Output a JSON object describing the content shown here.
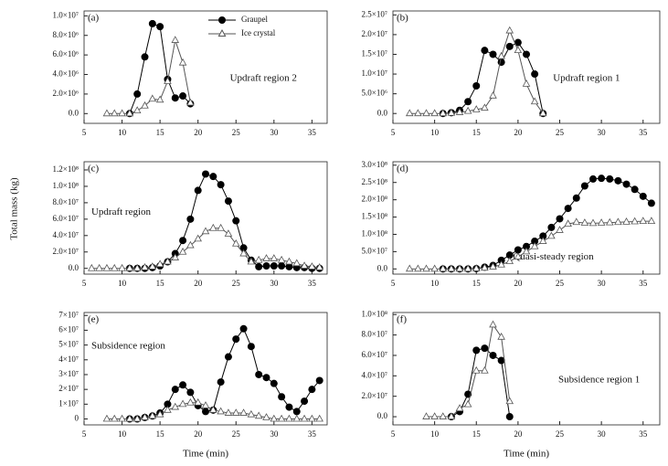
{
  "chart_data": [
    {
      "type": "line",
      "label": "(a)",
      "annotation": "Updraft region 2",
      "legend": "top-right",
      "x": [
        8,
        9,
        10,
        11,
        12,
        13,
        14,
        15,
        16,
        17,
        18,
        19
      ],
      "series": [
        {
          "name": "Graupel",
          "color": "#000000",
          "marker": "circle",
          "values": [
            null,
            null,
            null,
            0,
            2000000.0,
            5800000.0,
            9200000.0,
            8900000.0,
            3500000.0,
            1600000.0,
            1800000.0,
            1000000.0
          ]
        },
        {
          "name": "Ice crystal",
          "color": "#555555",
          "marker": "triangle",
          "values": [
            0,
            0,
            0,
            0,
            300000.0,
            800000.0,
            1500000.0,
            1400000.0,
            3300000.0,
            7500000.0,
            5200000.0,
            1100000.0
          ]
        }
      ],
      "xlim": [
        5,
        37
      ],
      "xticks": [
        5,
        10,
        15,
        20,
        25,
        30,
        35
      ],
      "ylim": [
        -1000000.0,
        10500000.0
      ],
      "yticks": [
        {
          "value": 0,
          "label": "0.0"
        },
        {
          "value": 2000000.0,
          "label": "2.0×10⁶"
        },
        {
          "value": 4000000.0,
          "label": "4.0×10⁶"
        },
        {
          "value": 6000000.0,
          "label": "6.0×10⁶"
        },
        {
          "value": 8000000.0,
          "label": "8.0×10⁶"
        },
        {
          "value": 10000000.0,
          "label": "1.0×10⁷"
        }
      ]
    },
    {
      "type": "line",
      "label": "(b)",
      "annotation": "Updraft region 1",
      "x": [
        7,
        8,
        9,
        10,
        11,
        12,
        13,
        14,
        15,
        16,
        17,
        18,
        19,
        20,
        21,
        22,
        23
      ],
      "series": [
        {
          "name": "Graupel",
          "color": "#000000",
          "marker": "circle",
          "values": [
            null,
            null,
            null,
            null,
            0,
            200000.0,
            800000.0,
            3000000.0,
            7000000.0,
            16000000.0,
            15000000.0,
            13000000.0,
            17000000.0,
            18000000.0,
            15000000.0,
            10000000.0,
            0
          ]
        },
        {
          "name": "Ice crystal",
          "color": "#555555",
          "marker": "triangle",
          "values": [
            0,
            0,
            0,
            0,
            0,
            100000.0,
            300000.0,
            600000.0,
            1000000.0,
            1400000.0,
            4500000.0,
            14500000.0,
            21000000.0,
            16000000.0,
            7500000.0,
            3000000.0,
            0
          ]
        }
      ],
      "xlim": [
        5,
        37
      ],
      "xticks": [
        5,
        10,
        15,
        20,
        25,
        30,
        35
      ],
      "ylim": [
        -2500000.0,
        26000000.0
      ],
      "yticks": [
        {
          "value": 0,
          "label": "0.0"
        },
        {
          "value": 5000000.0,
          "label": "5.0×10⁶"
        },
        {
          "value": 10000000.0,
          "label": "1.0×10⁷"
        },
        {
          "value": 15000000.0,
          "label": "1.5×10⁷"
        },
        {
          "value": 20000000.0,
          "label": "2.0×10⁷"
        },
        {
          "value": 25000000.0,
          "label": "2.5×10⁷"
        }
      ]
    },
    {
      "type": "line",
      "label": "(c)",
      "annotation": "Updraft region",
      "ylabel": "Total mass (kg)",
      "x": [
        6,
        7,
        8,
        9,
        10,
        11,
        12,
        13,
        14,
        15,
        16,
        17,
        18,
        19,
        20,
        21,
        22,
        23,
        24,
        25,
        26,
        27,
        28,
        29,
        30,
        31,
        32,
        33,
        34,
        35,
        36
      ],
      "series": [
        {
          "name": "Graupel",
          "color": "#000000",
          "marker": "circle",
          "values": [
            null,
            null,
            null,
            null,
            null,
            0,
            0,
            0,
            1000000.0,
            3000000.0,
            8000000.0,
            18000000.0,
            34000000.0,
            60000000.0,
            95000000.0,
            115000000.0,
            112000000.0,
            102000000.0,
            82000000.0,
            58000000.0,
            25000000.0,
            10000000.0,
            2000000.0,
            3000000.0,
            3000000.0,
            3000000.0,
            2000000.0,
            1000000.0,
            1000000.0,
            0,
            0
          ]
        },
        {
          "name": "Ice crystal",
          "color": "#555555",
          "marker": "triangle",
          "values": [
            0,
            0,
            0,
            0,
            0,
            0,
            0,
            1000000.0,
            2000000.0,
            5000000.0,
            8000000.0,
            13000000.0,
            20000000.0,
            28000000.0,
            36000000.0,
            45000000.0,
            49000000.0,
            49000000.0,
            42000000.0,
            30000000.0,
            18000000.0,
            8000000.0,
            10000000.0,
            12000000.0,
            12000000.0,
            10000000.0,
            8000000.0,
            6000000.0,
            3000000.0,
            2000000.0,
            1000000.0
          ]
        }
      ],
      "xlim": [
        5,
        37
      ],
      "xticks": [
        5,
        10,
        15,
        20,
        25,
        30,
        35
      ],
      "ylim": [
        -7000000.0,
        130000000.0
      ],
      "yticks": [
        {
          "value": 0,
          "label": "0.0"
        },
        {
          "value": 20000000.0,
          "label": "2.0×10⁷"
        },
        {
          "value": 40000000.0,
          "label": "4.0×10⁷"
        },
        {
          "value": 60000000.0,
          "label": "6.0×10⁷"
        },
        {
          "value": 80000000.0,
          "label": "8.0×10⁷"
        },
        {
          "value": 100000000.0,
          "label": "1.0×10⁸"
        },
        {
          "value": 120000000.0,
          "label": "1.2×10⁸"
        }
      ]
    },
    {
      "type": "line",
      "label": "(d)",
      "annotation": "Quasi-steady region",
      "x": [
        7,
        8,
        9,
        10,
        11,
        12,
        13,
        14,
        15,
        16,
        17,
        18,
        19,
        20,
        21,
        22,
        23,
        24,
        25,
        26,
        27,
        28,
        29,
        30,
        31,
        32,
        33,
        34,
        35,
        36
      ],
      "series": [
        {
          "name": "Graupel",
          "color": "#000000",
          "marker": "circle",
          "values": [
            null,
            null,
            null,
            null,
            0,
            0,
            0,
            0,
            1000000.0,
            5000000.0,
            10000000.0,
            25000000.0,
            40000000.0,
            55000000.0,
            65000000.0,
            80000000.0,
            95000000.0,
            120000000.0,
            145000000.0,
            175000000.0,
            205000000.0,
            240000000.0,
            260000000.0,
            262000000.0,
            260000000.0,
            255000000.0,
            245000000.0,
            230000000.0,
            210000000.0,
            190000000.0
          ]
        },
        {
          "name": "Ice crystal",
          "color": "#555555",
          "marker": "triangle",
          "values": [
            0,
            0,
            0,
            0,
            0,
            0,
            0,
            0,
            1000000.0,
            3000000.0,
            6000000.0,
            12000000.0,
            22000000.0,
            35000000.0,
            50000000.0,
            65000000.0,
            80000000.0,
            95000000.0,
            112000000.0,
            130000000.0,
            135000000.0,
            133000000.0,
            132000000.0,
            133000000.0,
            134000000.0,
            135000000.0,
            136000000.0,
            137000000.0,
            138000000.0,
            138000000.0
          ]
        }
      ],
      "xlim": [
        5,
        37
      ],
      "xticks": [
        5,
        10,
        15,
        20,
        25,
        30,
        35
      ],
      "ylim": [
        -15000000.0,
        310000000.0
      ],
      "yticks": [
        {
          "value": 0,
          "label": "0.0"
        },
        {
          "value": 50000000.0,
          "label": "5.0×10⁷"
        },
        {
          "value": 100000000.0,
          "label": "1.0×10⁸"
        },
        {
          "value": 150000000.0,
          "label": "1.5×10⁸"
        },
        {
          "value": 200000000.0,
          "label": "2.0×10⁸"
        },
        {
          "value": 250000000.0,
          "label": "2.5×10⁸"
        },
        {
          "value": 300000000.0,
          "label": "3.0×10⁸"
        }
      ]
    },
    {
      "type": "line",
      "label": "(e)",
      "annotation": "Subsidence region",
      "xlabel": "Time (min)",
      "x": [
        8,
        9,
        10,
        11,
        12,
        13,
        14,
        15,
        16,
        17,
        18,
        19,
        20,
        21,
        22,
        23,
        24,
        25,
        26,
        27,
        28,
        29,
        30,
        31,
        32,
        33,
        34,
        35,
        36
      ],
      "series": [
        {
          "name": "Graupel",
          "color": "#000000",
          "marker": "circle",
          "values": [
            null,
            null,
            null,
            0,
            0,
            1000000.0,
            2000000.0,
            4000000.0,
            10000000.0,
            20000000.0,
            23000000.0,
            18000000.0,
            9000000.0,
            5000000.0,
            6000000.0,
            25000000.0,
            42000000.0,
            54000000.0,
            61000000.0,
            49000000.0,
            30000000.0,
            28000000.0,
            24000000.0,
            15000000.0,
            8000000.0,
            5000000.0,
            12000000.0,
            20000000.0,
            26000000.0
          ]
        },
        {
          "name": "Ice crystal",
          "color": "#555555",
          "marker": "triangle",
          "values": [
            0,
            0,
            0,
            0,
            0,
            1000000.0,
            2000000.0,
            3000000.0,
            6000000.0,
            8000000.0,
            10000000.0,
            11000000.0,
            11000000.0,
            9000000.0,
            6000000.0,
            5000000.0,
            4000000.0,
            4000000.0,
            4000000.0,
            3000000.0,
            2000000.0,
            1000000.0,
            0,
            0,
            0,
            0,
            0,
            0,
            0
          ]
        }
      ],
      "xlim": [
        5,
        37
      ],
      "xticks": [
        5,
        10,
        15,
        20,
        25,
        30,
        35
      ],
      "ylim": [
        -4000000.0,
        72000000.0
      ],
      "yticks": [
        0,
        {
          "value": 10000000.0,
          "label": "1×10⁷"
        },
        {
          "value": 20000000.0,
          "label": "2×10⁷"
        },
        {
          "value": 30000000.0,
          "label": "3×10⁷"
        },
        {
          "value": 40000000.0,
          "label": "4×10⁷"
        },
        {
          "value": 50000000.0,
          "label": "5×10⁷"
        },
        {
          "value": 60000000.0,
          "label": "6×10⁷"
        },
        {
          "value": 70000000.0,
          "label": "7×10⁷"
        }
      ]
    },
    {
      "type": "line",
      "label": "(f)",
      "annotation": "Subsidence region 1",
      "xlabel": "Time (min)",
      "x": [
        9,
        10,
        11,
        12,
        13,
        14,
        15,
        16,
        17,
        18,
        19
      ],
      "series": [
        {
          "name": "Graupel",
          "color": "#000000",
          "marker": "circle",
          "values": [
            null,
            null,
            null,
            0,
            5000000.0,
            22000000.0,
            65000000.0,
            67000000.0,
            60000000.0,
            55000000.0,
            0
          ]
        },
        {
          "name": "Ice crystal",
          "color": "#555555",
          "marker": "triangle",
          "values": [
            0,
            0,
            0,
            0,
            8000000.0,
            12000000.0,
            45000000.0,
            45000000.0,
            90000000.0,
            78000000.0,
            15000000.0
          ]
        }
      ],
      "xlim": [
        5,
        37
      ],
      "xticks": [
        5,
        10,
        15,
        20,
        25,
        30,
        35
      ],
      "ylim": [
        -8000000.0,
        102000000.0
      ],
      "yticks": [
        {
          "value": 0,
          "label": "0.0"
        },
        {
          "value": 20000000.0,
          "label": "2.0×10⁷"
        },
        {
          "value": 40000000.0,
          "label": "4.0×10⁷"
        },
        {
          "value": 60000000.0,
          "label": "6.0×10⁷"
        },
        {
          "value": 80000000.0,
          "label": "8.0×10⁷"
        },
        {
          "value": 100000000.0,
          "label": "1.0×10⁸"
        }
      ]
    }
  ]
}
